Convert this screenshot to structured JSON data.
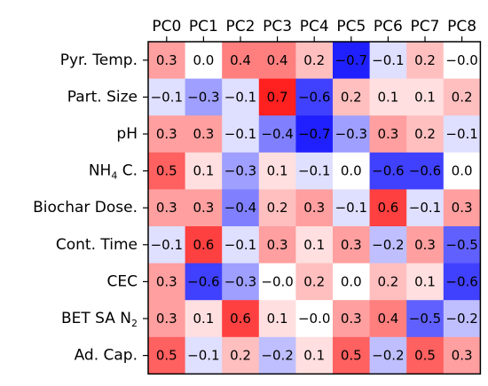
{
  "chart_data": {
    "type": "heatmap",
    "title": "",
    "xlabel": "",
    "ylabel": "",
    "colormap": "bwr",
    "vmin": -0.8,
    "vmax": 0.8,
    "grid": false,
    "x_axis_position": "top",
    "columns": [
      "PC0",
      "PC1",
      "PC2",
      "PC3",
      "PC4",
      "PC5",
      "PC6",
      "PC7",
      "PC8"
    ],
    "rows": [
      {
        "label": "Pyr. Temp."
      },
      {
        "label": "Part. Size"
      },
      {
        "label": "pH"
      },
      {
        "label": "NH",
        "subscript": "4",
        "suffix": " C."
      },
      {
        "label": "Biochar Dose."
      },
      {
        "label": "Cont. Time"
      },
      {
        "label": "CEC"
      },
      {
        "label": "BET SA N",
        "subscript": "2",
        "suffix": ""
      },
      {
        "label": "Ad. Cap."
      }
    ],
    "values": [
      [
        0.3,
        0.0,
        0.4,
        0.4,
        0.2,
        -0.7,
        -0.1,
        0.2,
        -0.0
      ],
      [
        -0.1,
        -0.3,
        -0.1,
        0.7,
        -0.6,
        0.2,
        0.1,
        0.1,
        0.2
      ],
      [
        0.3,
        0.3,
        -0.1,
        -0.4,
        -0.7,
        -0.3,
        0.3,
        0.2,
        -0.1
      ],
      [
        0.5,
        0.1,
        -0.3,
        0.1,
        -0.1,
        0.0,
        -0.6,
        -0.6,
        0.0
      ],
      [
        0.3,
        0.3,
        -0.4,
        0.2,
        0.3,
        -0.1,
        0.6,
        -0.1,
        0.3
      ],
      [
        -0.1,
        0.6,
        -0.1,
        0.3,
        0.1,
        0.3,
        -0.2,
        0.3,
        -0.5
      ],
      [
        0.3,
        -0.6,
        -0.3,
        -0.0,
        0.2,
        0.0,
        0.2,
        0.1,
        -0.6
      ],
      [
        0.3,
        0.1,
        0.6,
        0.1,
        -0.0,
        0.3,
        0.4,
        -0.5,
        -0.2
      ],
      [
        0.5,
        -0.1,
        0.2,
        -0.2,
        0.1,
        0.5,
        -0.2,
        0.5,
        0.3
      ]
    ],
    "labels": [
      [
        "0.3",
        "0.0",
        "0.4",
        "0.4",
        "0.2",
        "−0.7",
        "−0.1",
        "0.2",
        "−0.0"
      ],
      [
        "−0.1",
        "−0.3",
        "−0.1",
        "0.7",
        "−0.6",
        "0.2",
        "0.1",
        "0.1",
        "0.2"
      ],
      [
        "0.3",
        "0.3",
        "−0.1",
        "−0.4",
        "−0.7",
        "−0.3",
        "0.3",
        "0.2",
        "−0.1"
      ],
      [
        "0.5",
        "0.1",
        "−0.3",
        "0.1",
        "−0.1",
        "0.0",
        "−0.6",
        "−0.6",
        "0.0"
      ],
      [
        "0.3",
        "0.3",
        "−0.4",
        "0.2",
        "0.3",
        "−0.1",
        "0.6",
        "−0.1",
        "0.3"
      ],
      [
        "−0.1",
        "0.6",
        "−0.1",
        "0.3",
        "0.1",
        "0.3",
        "−0.2",
        "0.3",
        "−0.5"
      ],
      [
        "0.3",
        "−0.6",
        "−0.3",
        "−0.0",
        "0.2",
        "0.0",
        "0.2",
        "0.1",
        "−0.6"
      ],
      [
        "0.3",
        "0.1",
        "0.6",
        "0.1",
        "−0.0",
        "0.3",
        "0.4",
        "−0.5",
        "−0.2"
      ],
      [
        "0.5",
        "−0.1",
        "0.2",
        "−0.2",
        "0.1",
        "0.5",
        "−0.2",
        "0.5",
        "0.3"
      ]
    ]
  }
}
